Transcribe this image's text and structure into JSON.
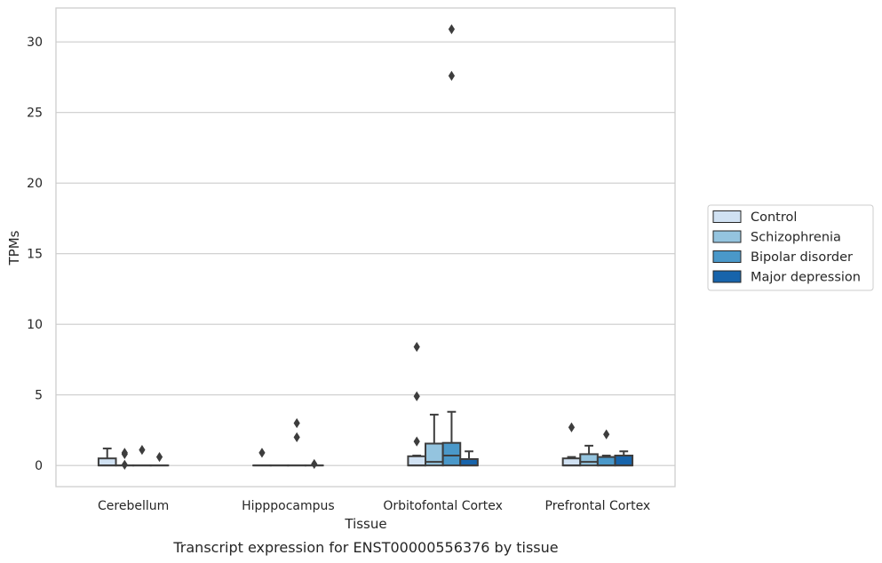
{
  "chart_data": {
    "type": "box",
    "xlabel": "Tissue",
    "ylabel": "TPMs",
    "caption": "Transcript expression for ENST00000556376 by tissue",
    "ylim": [
      -1.5,
      32.4
    ],
    "yticks": [
      0,
      5,
      10,
      15,
      20,
      25,
      30
    ],
    "grid": true,
    "legend_position": "right",
    "categories": [
      "Cerebellum",
      "Hipppocampus",
      "Orbitofontal Cortex",
      "Prefrontal Cortex"
    ],
    "series": [
      {
        "name": "Control",
        "color": "#d0e1f2",
        "boxes": [
          {
            "q1": 0,
            "median": 0,
            "q3": 0.5,
            "whisker_low": 0,
            "whisker_high": 1.2,
            "outliers": []
          },
          {
            "q1": 0,
            "median": 0,
            "q3": 0,
            "whisker_low": 0,
            "whisker_high": 0,
            "outliers": [
              0.9
            ]
          },
          {
            "q1": 0,
            "median": 0,
            "q3": 0.65,
            "whisker_low": 0,
            "whisker_high": 0.7,
            "outliers": [
              1.7,
              4.9,
              8.4
            ]
          },
          {
            "q1": 0,
            "median": 0,
            "q3": 0.5,
            "whisker_low": 0,
            "whisker_high": 0.6,
            "outliers": [
              2.7
            ]
          }
        ]
      },
      {
        "name": "Schizophrenia",
        "color": "#94c4df",
        "boxes": [
          {
            "q1": 0,
            "median": 0,
            "q3": 0,
            "whisker_low": 0,
            "whisker_high": 0,
            "outliers": [
              0.05,
              0.8,
              0.9
            ]
          },
          {
            "q1": 0,
            "median": 0,
            "q3": 0,
            "whisker_low": 0,
            "whisker_high": 0,
            "outliers": []
          },
          {
            "q1": 0,
            "median": 0.25,
            "q3": 1.55,
            "whisker_low": 0,
            "whisker_high": 3.6,
            "outliers": []
          },
          {
            "q1": 0,
            "median": 0.25,
            "q3": 0.8,
            "whisker_low": 0,
            "whisker_high": 1.4,
            "outliers": []
          }
        ]
      },
      {
        "name": "Bipolar disorder",
        "color": "#4a98c9",
        "boxes": [
          {
            "q1": 0,
            "median": 0,
            "q3": 0,
            "whisker_low": 0,
            "whisker_high": 0,
            "outliers": [
              1.1
            ]
          },
          {
            "q1": 0,
            "median": 0,
            "q3": 0,
            "whisker_low": 0,
            "whisker_high": 0,
            "outliers": [
              2.0,
              3.0
            ]
          },
          {
            "q1": 0,
            "median": 0.7,
            "q3": 1.6,
            "whisker_low": 0,
            "whisker_high": 3.8,
            "outliers": [
              27.6,
              30.9
            ]
          },
          {
            "q1": 0,
            "median": 0,
            "q3": 0.6,
            "whisker_low": 0,
            "whisker_high": 0.7,
            "outliers": [
              2.2
            ]
          }
        ]
      },
      {
        "name": "Major depression",
        "color": "#1764ab",
        "boxes": [
          {
            "q1": 0,
            "median": 0,
            "q3": 0,
            "whisker_low": 0,
            "whisker_high": 0,
            "outliers": [
              0.6
            ]
          },
          {
            "q1": 0,
            "median": 0,
            "q3": 0,
            "whisker_low": 0,
            "whisker_high": 0,
            "outliers": [
              0.1
            ]
          },
          {
            "q1": 0,
            "median": 0,
            "q3": 0.45,
            "whisker_low": 0,
            "whisker_high": 1.0,
            "outliers": []
          },
          {
            "q1": 0,
            "median": 0,
            "q3": 0.7,
            "whisker_low": 0,
            "whisker_high": 1.0,
            "outliers": []
          }
        ]
      }
    ]
  }
}
